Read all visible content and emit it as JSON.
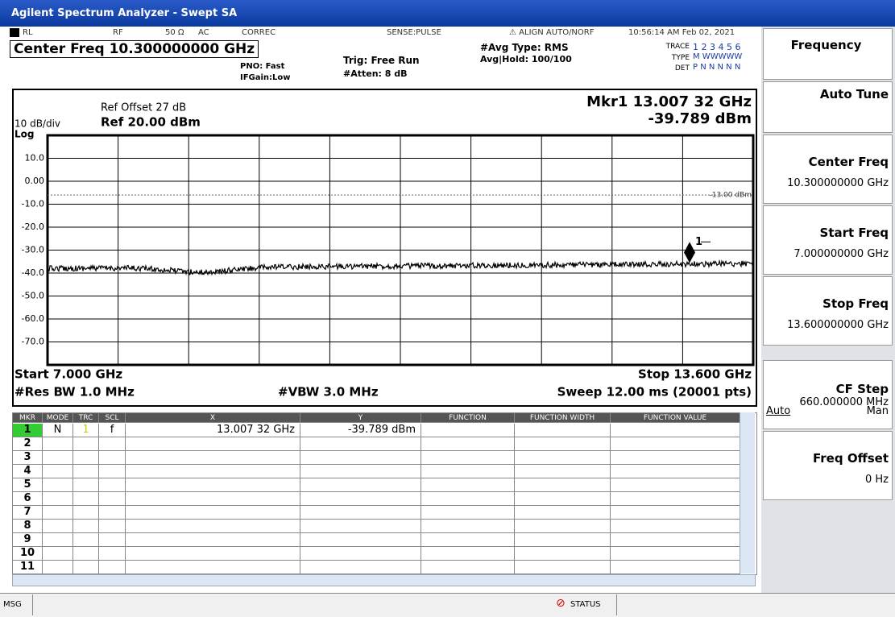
{
  "title_bar": "Agilent Spectrum Analyzer - Swept SA",
  "status_row": {
    "rl": "RL",
    "rf": "RF",
    "impedance": "50 Ω",
    "coupling": "AC",
    "correc": "CORREC",
    "sense": "SENSE:PULSE",
    "align": "ALIGN AUTO/NORF",
    "datetime": "10:56:14 AM Feb 02, 2021"
  },
  "settings": {
    "center_freq": "Center Freq 10.300000000 GHz",
    "pno": "PNO: Fast",
    "ifgain": "IFGain:Low",
    "trig": "Trig: Free Run",
    "atten": "#Atten: 8 dB",
    "avg_type": "#Avg Type: RMS",
    "avg_hold": "Avg|Hold: 100/100",
    "trace_label": "TRACE",
    "trace_nums": "1 2 3 4 5 6",
    "type_label": "TYPE",
    "type_vals": "M WWWWW",
    "det_label": "DET",
    "det_vals": "P N N N N N"
  },
  "graph": {
    "ref_offset": "Ref Offset 27 dB",
    "ref_level": "Ref 20.00 dBm",
    "scale": "10 dB/div",
    "scale_type": "Log",
    "marker_freq": "Mkr1 13.007 32 GHz",
    "marker_level": "-39.789 dBm",
    "display_line": "-13.00 dBm",
    "marker_label": "1",
    "y_labels": [
      "10.0",
      "0.00",
      "-10.0",
      "-20.0",
      "-30.0",
      "-40.0",
      "-50.0",
      "-60.0",
      "-70.0"
    ],
    "start": "Start 7.000 GHz",
    "stop": "Stop 13.600 GHz",
    "rbw": "#Res BW 1.0 MHz",
    "vbw": "#VBW 3.0 MHz",
    "sweep": "Sweep  12.00 ms (20001 pts)"
  },
  "table": {
    "headers": [
      "MKR",
      "MODE",
      "TRC",
      "SCL",
      "X",
      "Y",
      "FUNCTION",
      "FUNCTION WIDTH",
      "FUNCTION VALUE"
    ],
    "rows": [
      {
        "mkr": "1",
        "mode": "N",
        "trc": "1",
        "scl": "f",
        "x": "13.007 32 GHz",
        "y": "-39.789 dBm"
      },
      {
        "mkr": "2"
      },
      {
        "mkr": "3"
      },
      {
        "mkr": "4"
      },
      {
        "mkr": "5"
      },
      {
        "mkr": "6"
      },
      {
        "mkr": "7"
      },
      {
        "mkr": "8"
      },
      {
        "mkr": "9"
      },
      {
        "mkr": "10"
      },
      {
        "mkr": "11"
      }
    ]
  },
  "softkeys": {
    "menu": "Frequency",
    "auto_tune": "Auto Tune",
    "center_freq": {
      "label": "Center Freq",
      "value": "10.300000000 GHz"
    },
    "start_freq": {
      "label": "Start Freq",
      "value": "7.000000000 GHz"
    },
    "stop_freq": {
      "label": "Stop Freq",
      "value": "13.600000000 GHz"
    },
    "cf_step": {
      "label": "CF Step",
      "value": "660.000000 MHz",
      "auto": "Auto",
      "man": "Man"
    },
    "freq_offset": {
      "label": "Freq Offset",
      "value": "0 Hz"
    }
  },
  "status_bar": {
    "msg": "MSG",
    "status": "STATUS"
  }
}
